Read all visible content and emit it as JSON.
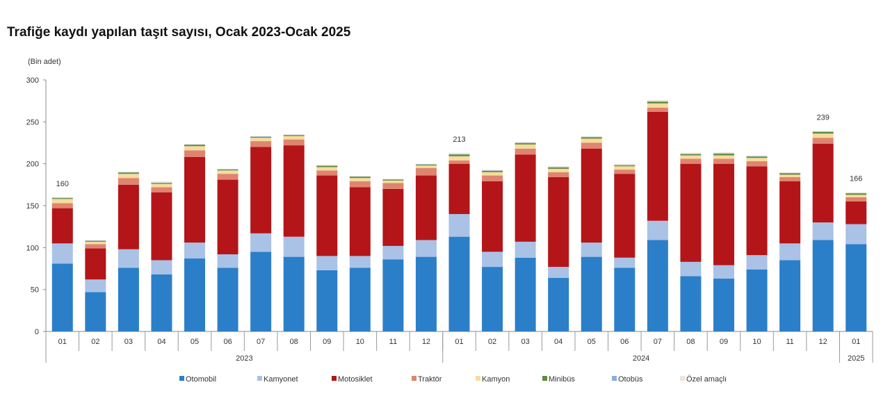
{
  "chart_data": {
    "type": "bar",
    "stacked": true,
    "title": "Trafiğe kaydı yapılan taşıt sayısı, Ocak 2023-Ocak 2025",
    "ylabel": "(Bin adet)",
    "xlabel": "",
    "ylim": [
      0,
      300
    ],
    "yticks": [
      0,
      50,
      100,
      150,
      200,
      250,
      300
    ],
    "grid": false,
    "legend_position": "bottom",
    "categories": [
      "01",
      "02",
      "03",
      "04",
      "05",
      "06",
      "07",
      "08",
      "09",
      "10",
      "11",
      "12",
      "01",
      "02",
      "03",
      "04",
      "05",
      "06",
      "07",
      "08",
      "09",
      "10",
      "11",
      "12",
      "01"
    ],
    "year_groups": [
      {
        "label": "2023",
        "count": 12
      },
      {
        "label": "2024",
        "count": 12
      },
      {
        "label": "2025",
        "count": 1
      }
    ],
    "series": [
      {
        "name": "Otomobil",
        "color": "#2b7fc9",
        "values": [
          81,
          47,
          76,
          68,
          87,
          76,
          95,
          89,
          73,
          76,
          86,
          89,
          113,
          77,
          88,
          64,
          89,
          76,
          109,
          66,
          63,
          74,
          85,
          109,
          104
        ]
      },
      {
        "name": "Kamyonet",
        "color": "#a9c2e6",
        "values": [
          24,
          15,
          22,
          17,
          19,
          16,
          22,
          24,
          17,
          14,
          16,
          20,
          27,
          18,
          19,
          13,
          17,
          12,
          23,
          17,
          16,
          17,
          20,
          21,
          24
        ]
      },
      {
        "name": "Motosiklet",
        "color": "#b41518",
        "values": [
          42,
          37,
          77,
          81,
          102,
          89,
          103,
          109,
          96,
          82,
          68,
          77,
          60,
          84,
          104,
          107,
          112,
          100,
          130,
          117,
          121,
          106,
          74,
          94,
          27
        ]
      },
      {
        "name": "Traktör",
        "color": "#df8470",
        "values": [
          6,
          5,
          8,
          6,
          8,
          7,
          7,
          7,
          6,
          7,
          7,
          9,
          4,
          7,
          7,
          6,
          7,
          5,
          5,
          6,
          6,
          6,
          5,
          7,
          5
        ]
      },
      {
        "name": "Kamyon",
        "color": "#f6dc9c",
        "values": [
          5,
          3,
          5,
          4,
          5,
          4,
          4,
          4,
          4,
          4,
          3,
          3,
          5,
          4,
          5,
          4,
          5,
          4,
          5,
          4,
          4,
          4,
          3,
          5,
          3
        ]
      },
      {
        "name": "Minibüs",
        "color": "#5e8b3e",
        "values": [
          1,
          1,
          1.5,
          1,
          1.5,
          1,
          1,
          1,
          1.5,
          1.5,
          1,
          1,
          2,
          1.5,
          1.5,
          1.5,
          1.5,
          1,
          2,
          1.5,
          2,
          1.5,
          1.5,
          2,
          1.5
        ]
      },
      {
        "name": "Otobüs",
        "color": "#8eaed6",
        "values": [
          0.5,
          0.5,
          0.5,
          0.5,
          0.5,
          0.5,
          0.5,
          0.5,
          0.5,
          0.5,
          0.5,
          0.5,
          0.5,
          0.5,
          0.5,
          0.5,
          0.5,
          0.5,
          0.5,
          0.5,
          0.5,
          0.5,
          0.5,
          0.5,
          0.5
        ]
      },
      {
        "name": "Özel amaçlı",
        "color": "#eee4da",
        "values": [
          0.5,
          0.5,
          0.5,
          1.5,
          0.5,
          0.5,
          0.5,
          0.5,
          0.5,
          0.5,
          0.5,
          0.5,
          1.5,
          1,
          1,
          1,
          1,
          1.5,
          1.5,
          1,
          1,
          1,
          1,
          0.5,
          1
        ]
      }
    ],
    "annotations": [
      {
        "index": 0,
        "text": "160"
      },
      {
        "index": 12,
        "text": "213"
      },
      {
        "index": 23,
        "text": "239"
      },
      {
        "index": 24,
        "text": "166"
      }
    ]
  }
}
